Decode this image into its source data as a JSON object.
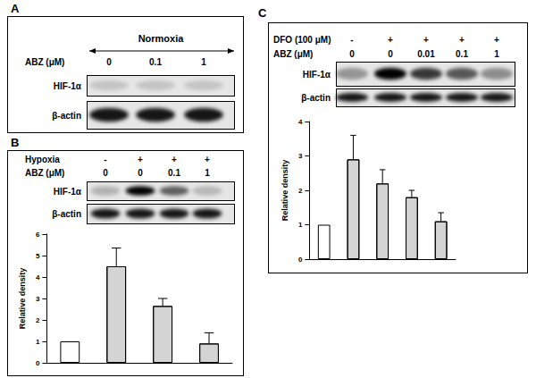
{
  "panels": [
    {
      "label": "A",
      "title": "Normoxia",
      "conditions": [
        {
          "name": "ABZ (μM)",
          "values": [
            "0",
            "0.1",
            "1"
          ]
        }
      ],
      "blots": [
        "HIF-1α",
        "β-actin"
      ]
    },
    {
      "label": "B",
      "conditions": [
        {
          "name": "Hypoxia",
          "values": [
            "-",
            "+",
            "+",
            "+"
          ]
        },
        {
          "name": "ABZ (μM)",
          "values": [
            "0",
            "0",
            "0.1",
            "1"
          ]
        }
      ],
      "blots": [
        "HIF-1α",
        "β-actin"
      ]
    },
    {
      "label": "C",
      "conditions": [
        {
          "name": "DFO (100 μM)",
          "values": [
            "-",
            "+",
            "+",
            "+",
            "+"
          ]
        },
        {
          "name": "ABZ (μM)",
          "values": [
            "0",
            "0",
            "0.01",
            "0.1",
            "1"
          ]
        }
      ],
      "blots": [
        "HIF-1α",
        "β-actin"
      ]
    }
  ],
  "chart_data": [
    {
      "type": "bar",
      "y_label": "Relative density",
      "categories": [
        null,
        null,
        null,
        null
      ],
      "values": [
        1,
        4.5,
        2.65,
        0.9
      ],
      "errors": [
        0,
        0.85,
        0.35,
        0.5
      ],
      "colors": [
        "#ffffff",
        "#d4d4d4",
        "#d4d4d4",
        "#d4d4d4"
      ],
      "ylim": [
        0,
        6
      ],
      "yticks": [
        0,
        1,
        2,
        3,
        4,
        5,
        6
      ],
      "grid": false,
      "tick_labels": "y"
    },
    {
      "type": "bar",
      "y_label": "Relative density",
      "categories": [
        null,
        null,
        null,
        null,
        null
      ],
      "values": [
        1,
        2.9,
        2.2,
        1.8,
        1.1
      ],
      "errors": [
        0,
        0.7,
        0.4,
        0.2,
        0.25
      ],
      "colors": [
        "#ffffff",
        "#d4d4d4",
        "#d4d4d4",
        "#d4d4d4",
        "#d4d4d4"
      ],
      "ylim": [
        0,
        4
      ],
      "yticks": [
        0,
        1,
        2,
        3,
        4
      ],
      "grid": false,
      "tick_labels": "y"
    }
  ]
}
